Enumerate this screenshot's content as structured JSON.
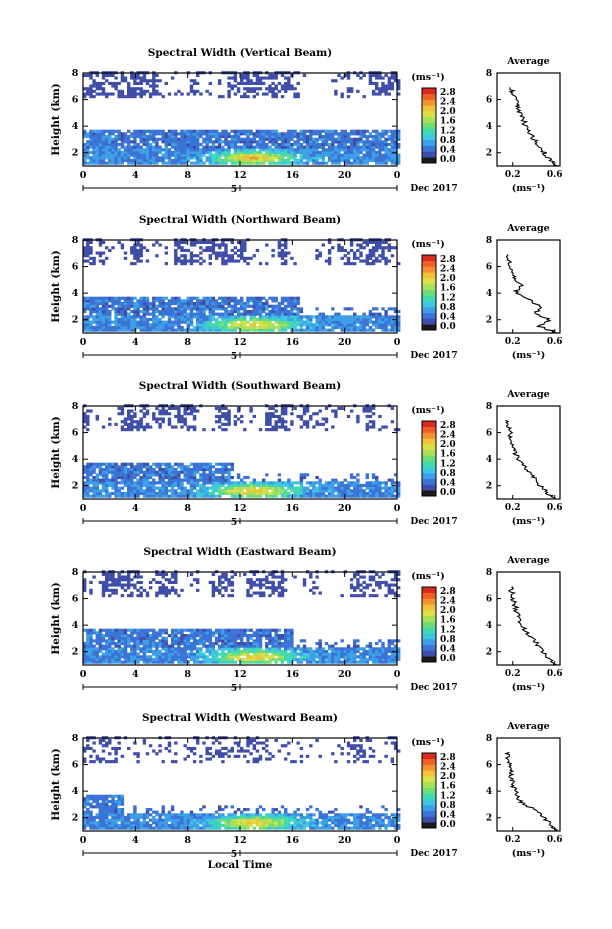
{
  "colors": {
    "scale": [
      "#1a1a1a",
      "#3f4ea8",
      "#3b73d6",
      "#3da0e6",
      "#3fc7e0",
      "#40d9b0",
      "#6fdc7a",
      "#a8e05a",
      "#dbe04a",
      "#f2c23a",
      "#f39230",
      "#ee6028",
      "#d92a1f"
    ],
    "axis": "#000000",
    "background": "#ffffff"
  },
  "chart_data": [
    {
      "type": "heatmap",
      "title": "Spectral Width (Vertical Beam)",
      "ylabel": "Height (km)",
      "xlabel": "",
      "x_ticks": [
        "0",
        "4",
        "8",
        "12",
        "16",
        "20",
        "0"
      ],
      "x_sub": "5",
      "date": "Dec 2017",
      "y_ticks": [
        "2",
        "4",
        "6",
        "8"
      ],
      "ylim": [
        1,
        8
      ],
      "xlim": [
        0,
        24
      ],
      "colorbar": {
        "unit": "(ms⁻¹)",
        "ticks": [
          "0.0",
          "0.4",
          "0.8",
          "1.2",
          "1.6",
          "2.0",
          "2.4",
          "2.8"
        ]
      },
      "profile": {
        "title": "Average",
        "xlabel": "(ms⁻¹)",
        "x_ticks": [
          "0.2",
          "0.6"
        ],
        "y_ticks": [
          "2",
          "4",
          "6",
          "8"
        ],
        "height_km": [
          1.0,
          1.5,
          2.0,
          2.5,
          3.0,
          3.5,
          4.0,
          4.5,
          5.0,
          5.5,
          6.0,
          6.5,
          7.0
        ],
        "width_ms": [
          0.62,
          0.55,
          0.5,
          0.46,
          0.4,
          0.36,
          0.32,
          0.3,
          0.27,
          0.25,
          0.23,
          0.2,
          0.18
        ]
      }
    },
    {
      "type": "heatmap",
      "title": "Spectral Width (Northward Beam)",
      "ylabel": "Height (km)",
      "xlabel": "",
      "x_ticks": [
        "0",
        "4",
        "8",
        "12",
        "16",
        "20",
        "0"
      ],
      "x_sub": "5",
      "date": "Dec 2017",
      "y_ticks": [
        "2",
        "4",
        "6",
        "8"
      ],
      "ylim": [
        1,
        8
      ],
      "xlim": [
        0,
        24
      ],
      "colorbar": {
        "unit": "(ms⁻¹)",
        "ticks": [
          "0.0",
          "0.4",
          "0.8",
          "1.2",
          "1.6",
          "2.0",
          "2.4",
          "2.8"
        ]
      },
      "profile": {
        "title": "Average",
        "xlabel": "(ms⁻¹)",
        "x_ticks": [
          "0.2",
          "0.6"
        ],
        "y_ticks": [
          "2",
          "4",
          "6",
          "8"
        ],
        "height_km": [
          1.0,
          1.5,
          2.0,
          2.5,
          3.0,
          3.5,
          4.0,
          4.5,
          5.0,
          5.5,
          6.0,
          6.5,
          7.0
        ],
        "width_ms": [
          0.63,
          0.45,
          0.55,
          0.42,
          0.48,
          0.35,
          0.22,
          0.28,
          0.24,
          0.2,
          0.18,
          0.16,
          0.15
        ]
      }
    },
    {
      "type": "heatmap",
      "title": "Spectral Width (Southward Beam)",
      "ylabel": "Height (km)",
      "xlabel": "",
      "x_ticks": [
        "0",
        "4",
        "8",
        "12",
        "16",
        "20",
        "0"
      ],
      "x_sub": "5",
      "date": "Dec 2017",
      "y_ticks": [
        "2",
        "4",
        "6",
        "8"
      ],
      "ylim": [
        1,
        8
      ],
      "xlim": [
        0,
        24
      ],
      "colorbar": {
        "unit": "(ms⁻¹)",
        "ticks": [
          "0.0",
          "0.4",
          "0.8",
          "1.2",
          "1.6",
          "2.0",
          "2.4",
          "2.8"
        ]
      },
      "profile": {
        "title": "Average",
        "xlabel": "(ms⁻¹)",
        "x_ticks": [
          "0.2",
          "0.6"
        ],
        "y_ticks": [
          "2",
          "4",
          "6",
          "8"
        ],
        "height_km": [
          1.0,
          1.5,
          2.0,
          2.5,
          3.0,
          3.5,
          4.0,
          4.5,
          5.0,
          5.5,
          6.0,
          6.5,
          7.0
        ],
        "width_ms": [
          0.6,
          0.52,
          0.46,
          0.42,
          0.36,
          0.3,
          0.26,
          0.22,
          0.2,
          0.18,
          0.17,
          0.16,
          0.15
        ]
      }
    },
    {
      "type": "heatmap",
      "title": "Spectral Width (Eastward Beam)",
      "ylabel": "Height (km)",
      "xlabel": "",
      "x_ticks": [
        "0",
        "4",
        "8",
        "12",
        "16",
        "20",
        "0"
      ],
      "x_sub": "5",
      "date": "Dec 2017",
      "y_ticks": [
        "2",
        "4",
        "6",
        "8"
      ],
      "ylim": [
        1,
        8
      ],
      "xlim": [
        0,
        24
      ],
      "colorbar": {
        "unit": "(ms⁻¹)",
        "ticks": [
          "0.0",
          "0.4",
          "0.8",
          "1.2",
          "1.6",
          "2.0",
          "2.4",
          "2.8"
        ]
      },
      "profile": {
        "title": "Average",
        "xlabel": "(ms⁻¹)",
        "x_ticks": [
          "0.2",
          "0.6"
        ],
        "y_ticks": [
          "2",
          "4",
          "6",
          "8"
        ],
        "height_km": [
          1.0,
          1.5,
          2.0,
          2.5,
          3.0,
          3.5,
          4.0,
          4.5,
          5.0,
          5.5,
          6.0,
          6.5,
          7.0
        ],
        "width_ms": [
          0.6,
          0.54,
          0.48,
          0.44,
          0.38,
          0.33,
          0.28,
          0.25,
          0.24,
          0.22,
          0.2,
          0.19,
          0.18
        ]
      }
    },
    {
      "type": "heatmap",
      "title": "Spectral Width (Westward Beam)",
      "ylabel": "Height (km)",
      "xlabel": "Local Time",
      "x_ticks": [
        "0",
        "4",
        "8",
        "12",
        "16",
        "20",
        "0"
      ],
      "x_sub": "5",
      "date": "Dec 2017",
      "y_ticks": [
        "2",
        "4",
        "6",
        "8"
      ],
      "ylim": [
        1,
        8
      ],
      "xlim": [
        0,
        24
      ],
      "colorbar": {
        "unit": "(ms⁻¹)",
        "ticks": [
          "0.0",
          "0.4",
          "0.8",
          "1.2",
          "1.6",
          "2.0",
          "2.4",
          "2.8"
        ]
      },
      "profile": {
        "title": "Average",
        "xlabel": "(ms⁻¹)",
        "x_ticks": [
          "0.2",
          "0.6"
        ],
        "y_ticks": [
          "2",
          "4",
          "6",
          "8"
        ],
        "height_km": [
          1.0,
          1.5,
          2.0,
          2.5,
          3.0,
          3.5,
          4.0,
          4.5,
          5.0,
          5.5,
          6.0,
          6.5,
          7.0
        ],
        "width_ms": [
          0.62,
          0.56,
          0.5,
          0.45,
          0.3,
          0.25,
          0.22,
          0.2,
          0.19,
          0.18,
          0.17,
          0.16,
          0.15
        ]
      }
    }
  ]
}
